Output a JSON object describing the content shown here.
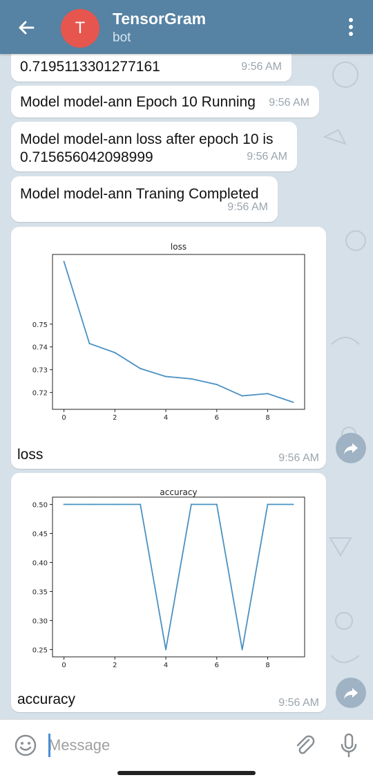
{
  "header": {
    "title": "TensorGram",
    "subtitle": "bot",
    "avatar_letter": "T",
    "avatar_color": "#e6564e",
    "bar_color": "#5682a3"
  },
  "messages": [
    {
      "text": "0.7195113301277161",
      "time": "9:56 AM"
    },
    {
      "text": "Model model-ann Epoch 10 Running",
      "time": "9:56 AM"
    },
    {
      "text": "Model model-ann loss after epoch 10 is 0.715656042098999",
      "time": "9:56 AM"
    },
    {
      "text": "Model model-ann Traning Completed",
      "time": "9:56 AM"
    }
  ],
  "image_messages": [
    {
      "caption": "loss",
      "time": "9:56 AM"
    },
    {
      "caption": "accuracy",
      "time": "9:56 AM"
    }
  ],
  "chart_data": [
    {
      "type": "line",
      "title": "loss",
      "xlabel": "",
      "ylabel": "",
      "x": [
        0,
        1,
        2,
        3,
        4,
        5,
        6,
        7,
        8,
        9
      ],
      "values": [
        0.7775,
        0.7415,
        0.7375,
        0.7305,
        0.727,
        0.726,
        0.7235,
        0.7185,
        0.7195,
        0.7157
      ],
      "xticks": [
        0,
        2,
        4,
        6,
        8
      ],
      "yticks": [
        0.72,
        0.73,
        0.74,
        0.75
      ],
      "xlim": [
        -0.45,
        9.45
      ],
      "ylim": [
        0.7126,
        0.7806
      ],
      "line_color": "#4a90c2",
      "grid": false
    },
    {
      "type": "line",
      "title": "accuracy",
      "xlabel": "",
      "ylabel": "",
      "x": [
        0,
        1,
        2,
        3,
        4,
        5,
        6,
        7,
        8,
        9
      ],
      "values": [
        0.5,
        0.5,
        0.5,
        0.5,
        0.25,
        0.5,
        0.5,
        0.25,
        0.5,
        0.5
      ],
      "xticks": [
        0,
        2,
        4,
        6,
        8
      ],
      "yticks": [
        0.25,
        0.3,
        0.35,
        0.4,
        0.45,
        0.5
      ],
      "yticklabels": [
        "0.25",
        "0.30",
        "0.35",
        "0.40",
        "0.45",
        "0.50"
      ],
      "xlim": [
        -0.45,
        9.45
      ],
      "ylim": [
        0.2375,
        0.5125
      ],
      "line_color": "#4a90c2",
      "grid": false
    }
  ],
  "input": {
    "placeholder": "Message"
  }
}
